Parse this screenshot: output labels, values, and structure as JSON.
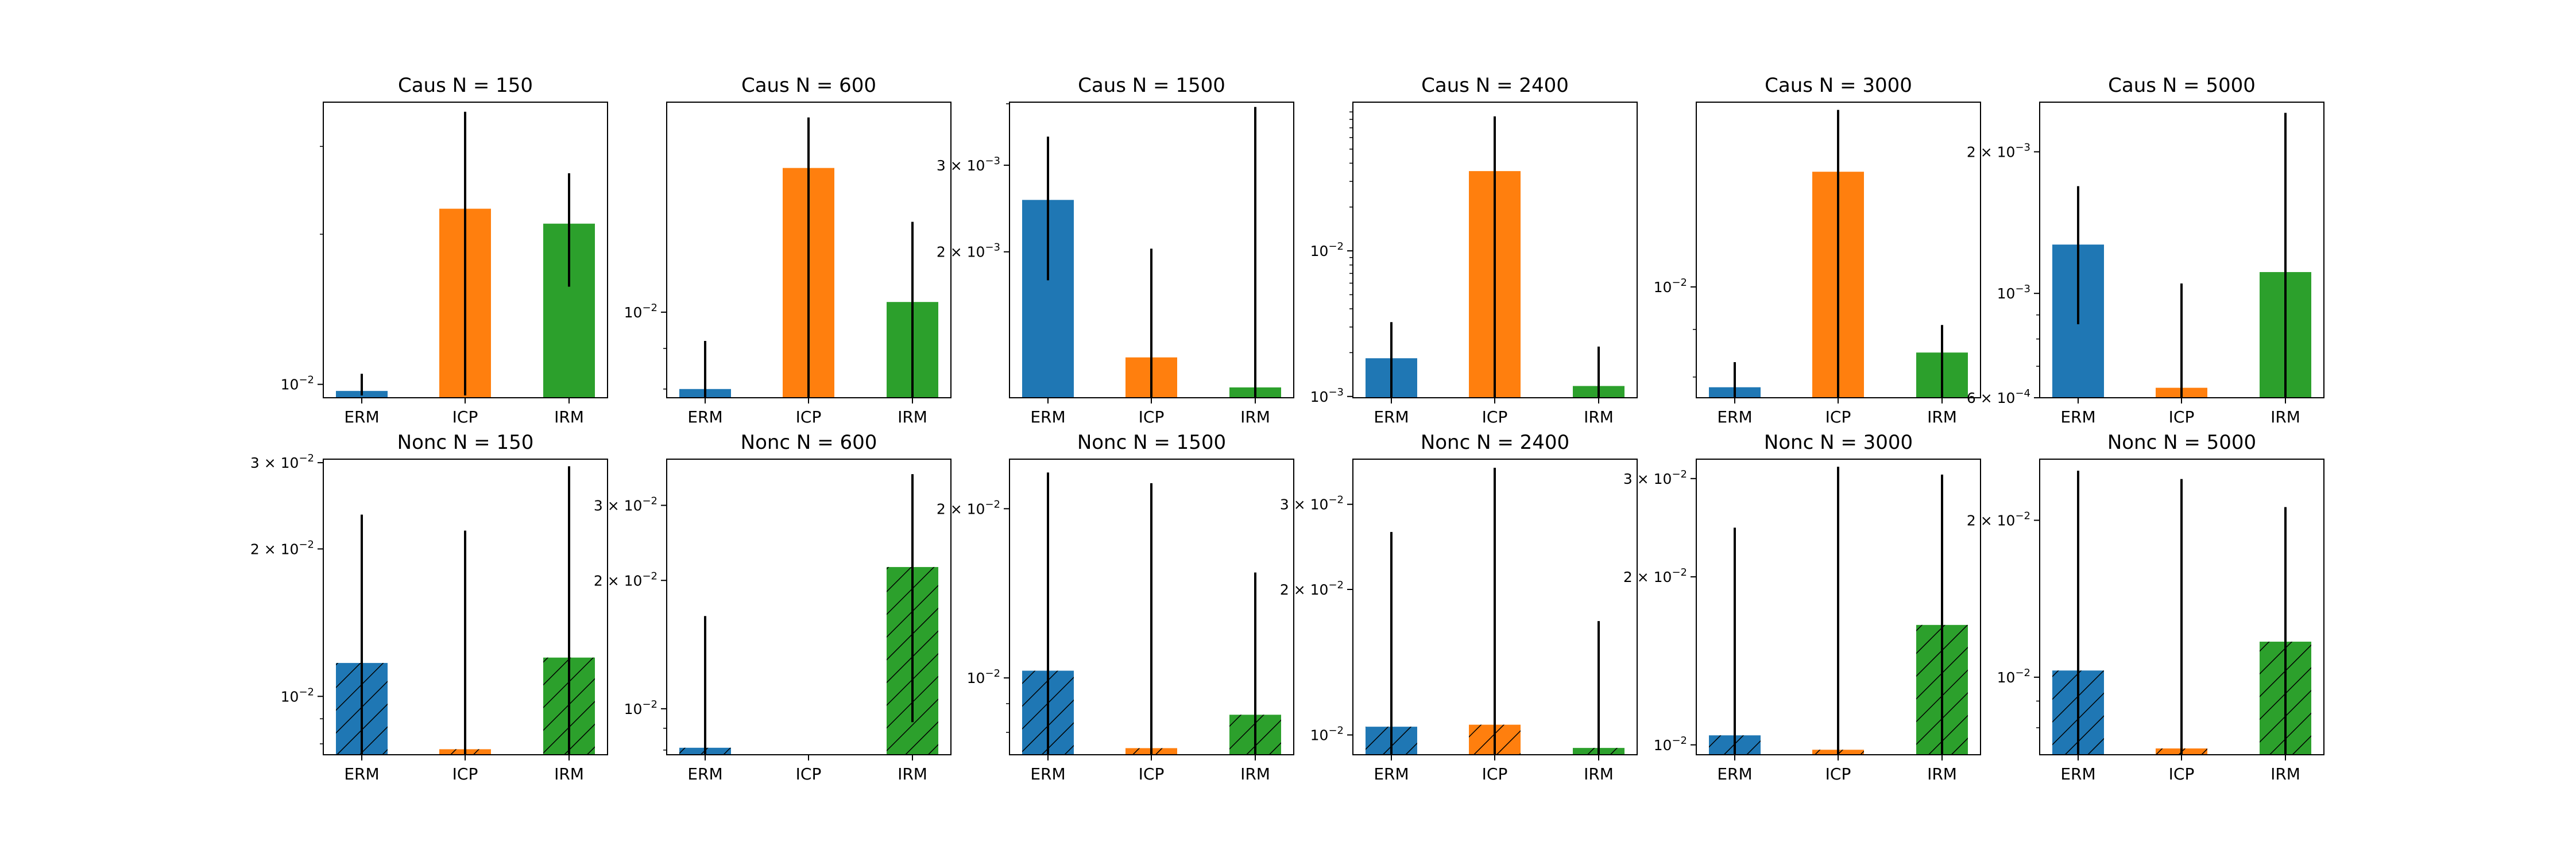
{
  "colors": {
    "ERM": "#1f77b4",
    "ICP": "#ff7f0e",
    "IRM": "#2ca02c",
    "errorbar": "#000000"
  },
  "chart_data": [
    {
      "type": "bar",
      "title": "Caus N = 150",
      "categories": [
        "ERM",
        "ICP",
        "IRM"
      ],
      "yscale": "log",
      "ylim": [
        0.0094,
        0.0368
      ],
      "values": [
        0.0097,
        0.0225,
        0.021
      ],
      "err_low": [
        0.0095,
        0.0095,
        0.0157
      ],
      "err_high": [
        0.0105,
        0.0352,
        0.0265
      ],
      "hatch": false,
      "yticks": [
        {
          "value": 0.01,
          "label": "10",
          "exp": "−2"
        }
      ]
    },
    {
      "type": "bar",
      "title": "Caus N = 600",
      "categories": [
        "ERM",
        "ICP",
        "IRM"
      ],
      "yscale": "log",
      "ylim": [
        0.0078,
        0.0184
      ],
      "values": [
        0.008,
        0.0152,
        0.0103
      ],
      "err_low": [
        0.0078,
        0.0078,
        0.0078
      ],
      "err_high": [
        0.0092,
        0.0176,
        0.013
      ],
      "hatch": false,
      "yticks": [
        {
          "value": 0.01,
          "label": "10",
          "exp": "−2"
        }
      ]
    },
    {
      "type": "bar",
      "title": "Caus N = 1500",
      "categories": [
        "ERM",
        "ICP",
        "IRM"
      ],
      "yscale": "log",
      "ylim": [
        0.00101,
        0.00403
      ],
      "values": [
        0.00255,
        0.00122,
        0.00106
      ],
      "err_low": [
        0.00175,
        0.00101,
        0.00101
      ],
      "err_high": [
        0.00343,
        0.00203,
        0.00394
      ],
      "hatch": false,
      "yticks": [
        {
          "value": 0.002,
          "label": "2 × 10",
          "exp": "−3"
        },
        {
          "value": 0.003,
          "label": "3 × 10",
          "exp": "−3"
        }
      ]
    },
    {
      "type": "bar",
      "title": "Caus N = 2400",
      "categories": [
        "ERM",
        "ICP",
        "IRM"
      ],
      "yscale": "log",
      "ylim": [
        0.00098,
        0.105
      ],
      "values": [
        0.00183,
        0.0353,
        0.00118
      ],
      "err_low": [
        0.00098,
        0.00098,
        0.00098
      ],
      "err_high": [
        0.00324,
        0.0839,
        0.0022
      ],
      "hatch": false,
      "yticks": [
        {
          "value": 0.001,
          "label": "10",
          "exp": "−3"
        },
        {
          "value": 0.01,
          "label": "10",
          "exp": "−2"
        }
      ]
    },
    {
      "type": "bar",
      "title": "Caus N = 3000",
      "categories": [
        "ERM",
        "ICP",
        "IRM"
      ],
      "yscale": "log",
      "ylim": [
        0.0076,
        0.0158
      ],
      "values": [
        0.0078,
        0.0133,
        0.0085
      ],
      "err_low": [
        0.0076,
        0.0076,
        0.0076
      ],
      "err_high": [
        0.0083,
        0.0155,
        0.0091
      ],
      "hatch": false,
      "yticks": [
        {
          "value": 0.01,
          "label": "10",
          "exp": "−2"
        }
      ]
    },
    {
      "type": "bar",
      "title": "Caus N = 5000",
      "categories": [
        "ERM",
        "ICP",
        "IRM"
      ],
      "yscale": "log",
      "ylim": [
        0.0006,
        0.00255
      ],
      "values": [
        0.00127,
        0.00063,
        0.00111
      ],
      "err_low": [
        0.00086,
        0.0006,
        0.0006
      ],
      "err_high": [
        0.00169,
        0.00105,
        0.00242
      ],
      "hatch": false,
      "yticks": [
        {
          "value": 0.0006,
          "label": "6 × 10",
          "exp": "−4"
        },
        {
          "value": 0.001,
          "label": "10",
          "exp": "−3"
        },
        {
          "value": 0.002,
          "label": "2 × 10",
          "exp": "−3"
        }
      ]
    },
    {
      "type": "bar",
      "title": "Nonc N = 150",
      "categories": [
        "ERM",
        "ICP",
        "IRM"
      ],
      "yscale": "log",
      "ylim": [
        0.0076,
        0.0305
      ],
      "values": [
        0.0117,
        0.0078,
        0.012
      ],
      "err_low": [
        0.0076,
        0.0076,
        0.0076
      ],
      "err_high": [
        0.0235,
        0.0218,
        0.0295
      ],
      "hatch": true,
      "yticks": [
        {
          "value": 0.01,
          "label": "10",
          "exp": "−2"
        },
        {
          "value": 0.02,
          "label": "2 × 10",
          "exp": "−2"
        },
        {
          "value": 0.03,
          "label": "3 × 10",
          "exp": "−2"
        }
      ]
    },
    {
      "type": "bar",
      "title": "Nonc N = 600",
      "categories": [
        "ERM",
        "ICP",
        "IRM"
      ],
      "yscale": "log",
      "ylim": [
        0.0078,
        0.0385
      ],
      "values": [
        0.0081,
        0.0078,
        0.0215
      ],
      "err_low": [
        0.0078,
        0.0078,
        0.0093
      ],
      "err_high": [
        0.0165,
        0.0078,
        0.0355
      ],
      "hatch": true,
      "yticks": [
        {
          "value": 0.01,
          "label": "10",
          "exp": "−2"
        },
        {
          "value": 0.02,
          "label": "2 × 10",
          "exp": "−2"
        },
        {
          "value": 0.03,
          "label": "3 × 10",
          "exp": "−2"
        }
      ]
    },
    {
      "type": "bar",
      "title": "Nonc N = 1500",
      "categories": [
        "ERM",
        "ICP",
        "IRM"
      ],
      "yscale": "log",
      "ylim": [
        0.0073,
        0.0245
      ],
      "values": [
        0.0103,
        0.0075,
        0.0086
      ],
      "err_low": [
        0.0073,
        0.0073,
        0.0073
      ],
      "err_high": [
        0.0232,
        0.0222,
        0.0154
      ],
      "hatch": true,
      "yticks": [
        {
          "value": 0.01,
          "label": "10",
          "exp": "−2"
        },
        {
          "value": 0.02,
          "label": "2 × 10",
          "exp": "−2"
        }
      ]
    },
    {
      "type": "bar",
      "title": "Nonc N = 2400",
      "categories": [
        "ERM",
        "ICP",
        "IRM"
      ],
      "yscale": "log",
      "ylim": [
        0.0091,
        0.0372
      ],
      "values": [
        0.0104,
        0.0105,
        0.0094
      ],
      "err_low": [
        0.0091,
        0.0091,
        0.0091
      ],
      "err_high": [
        0.0263,
        0.0357,
        0.0172
      ],
      "hatch": true,
      "yticks": [
        {
          "value": 0.01,
          "label": "10",
          "exp": "−2"
        },
        {
          "value": 0.02,
          "label": "2 × 10",
          "exp": "−2"
        },
        {
          "value": 0.03,
          "label": "3 × 10",
          "exp": "−2"
        }
      ]
    },
    {
      "type": "bar",
      "title": "Nonc N = 3000",
      "categories": [
        "ERM",
        "ICP",
        "IRM"
      ],
      "yscale": "log",
      "ylim": [
        0.0096,
        0.0325
      ],
      "values": [
        0.0104,
        0.0098,
        0.0164
      ],
      "err_low": [
        0.0096,
        0.0096,
        0.0096
      ],
      "err_high": [
        0.0245,
        0.0315,
        0.0305
      ],
      "hatch": true,
      "yticks": [
        {
          "value": 0.01,
          "label": "10",
          "exp": "−2"
        },
        {
          "value": 0.02,
          "label": "2 × 10",
          "exp": "−2"
        },
        {
          "value": 0.03,
          "label": "3 × 10",
          "exp": "−2"
        }
      ]
    },
    {
      "type": "bar",
      "title": "Nonc N = 5000",
      "categories": [
        "ERM",
        "ICP",
        "IRM"
      ],
      "yscale": "log",
      "ylim": [
        0.0071,
        0.0262
      ],
      "values": [
        0.0103,
        0.0073,
        0.0117
      ],
      "err_low": [
        0.0071,
        0.0071,
        0.0071
      ],
      "err_high": [
        0.0249,
        0.024,
        0.0212
      ],
      "hatch": true,
      "yticks": [
        {
          "value": 0.01,
          "label": "10",
          "exp": "−2"
        },
        {
          "value": 0.02,
          "label": "2 × 10",
          "exp": "−2"
        }
      ]
    }
  ]
}
